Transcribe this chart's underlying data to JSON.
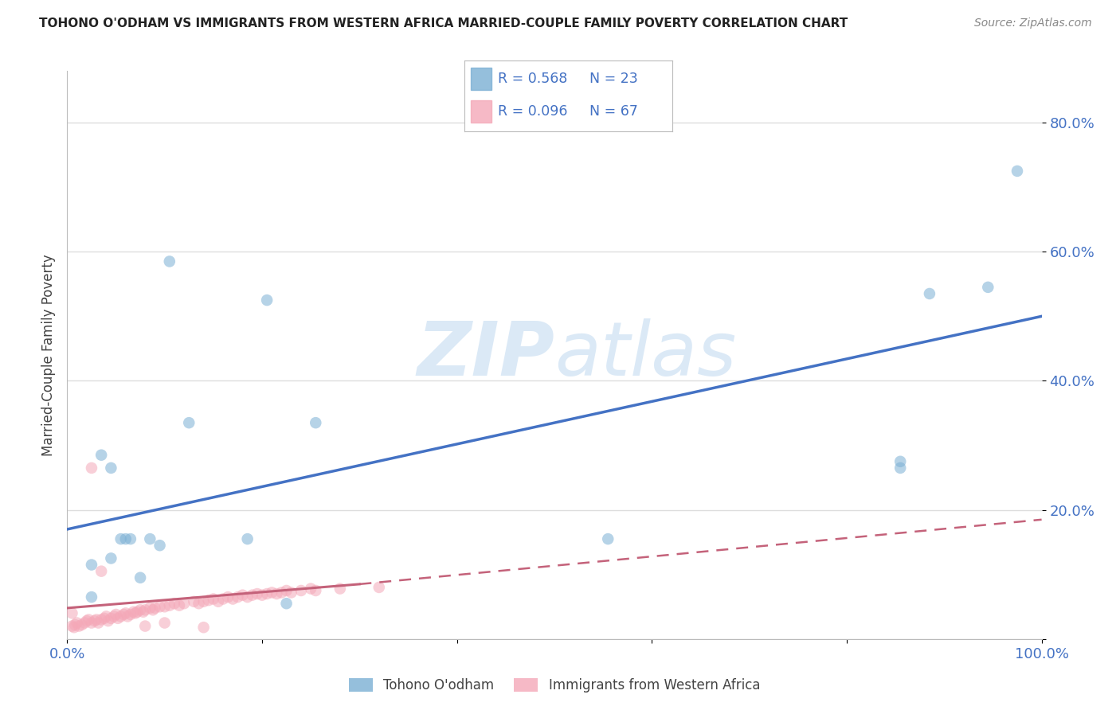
{
  "title": "TOHONO O'ODHAM VS IMMIGRANTS FROM WESTERN AFRICA MARRIED-COUPLE FAMILY POVERTY CORRELATION CHART",
  "source": "Source: ZipAtlas.com",
  "ylabel": "Married-Couple Family Poverty",
  "xlim": [
    0.0,
    1.0
  ],
  "ylim": [
    0.0,
    0.88
  ],
  "xticks": [
    0.0,
    0.2,
    0.4,
    0.6,
    0.8,
    1.0
  ],
  "xticklabels": [
    "0.0%",
    "",
    "",
    "",
    "",
    "100.0%"
  ],
  "yticks": [
    0.0,
    0.2,
    0.4,
    0.6,
    0.8
  ],
  "yticklabels": [
    "",
    "20.0%",
    "40.0%",
    "60.0%",
    "80.0%"
  ],
  "blue_color": "#7BAFD4",
  "pink_color": "#F4A8B8",
  "blue_line_color": "#4472C4",
  "pink_line_color": "#C4627A",
  "watermark_zip": "ZIP",
  "watermark_atlas": "atlas",
  "legend_R1": "0.568",
  "legend_N1": "23",
  "legend_R2": "0.096",
  "legend_N2": "67",
  "legend_label1": "Tohono O'odham",
  "legend_label2": "Immigrants from Western Africa",
  "blue_scatter_x": [
    0.025,
    0.025,
    0.035,
    0.045,
    0.045,
    0.055,
    0.06,
    0.065,
    0.075,
    0.085,
    0.095,
    0.105,
    0.125,
    0.185,
    0.205,
    0.225,
    0.255,
    0.555,
    0.855,
    0.885,
    0.855,
    0.945,
    0.975
  ],
  "blue_scatter_y": [
    0.065,
    0.115,
    0.285,
    0.265,
    0.125,
    0.155,
    0.155,
    0.155,
    0.095,
    0.155,
    0.145,
    0.585,
    0.335,
    0.155,
    0.525,
    0.055,
    0.335,
    0.155,
    0.265,
    0.535,
    0.275,
    0.545,
    0.725
  ],
  "pink_scatter_x": [
    0.005,
    0.007,
    0.008,
    0.01,
    0.012,
    0.015,
    0.018,
    0.02,
    0.022,
    0.025,
    0.028,
    0.03,
    0.032,
    0.035,
    0.038,
    0.04,
    0.042,
    0.045,
    0.048,
    0.05,
    0.052,
    0.055,
    0.058,
    0.06,
    0.062,
    0.065,
    0.068,
    0.07,
    0.072,
    0.075,
    0.078,
    0.08,
    0.085,
    0.088,
    0.09,
    0.095,
    0.1,
    0.105,
    0.11,
    0.115,
    0.12,
    0.13,
    0.135,
    0.14,
    0.145,
    0.15,
    0.155,
    0.16,
    0.165,
    0.17,
    0.175,
    0.18,
    0.185,
    0.19,
    0.195,
    0.2,
    0.205,
    0.21,
    0.215,
    0.22,
    0.225,
    0.23,
    0.24,
    0.25,
    0.255,
    0.28,
    0.32
  ],
  "pink_scatter_y": [
    0.02,
    0.018,
    0.022,
    0.025,
    0.02,
    0.022,
    0.025,
    0.028,
    0.03,
    0.025,
    0.028,
    0.03,
    0.025,
    0.03,
    0.032,
    0.035,
    0.028,
    0.032,
    0.035,
    0.038,
    0.032,
    0.035,
    0.038,
    0.04,
    0.035,
    0.038,
    0.042,
    0.04,
    0.042,
    0.045,
    0.042,
    0.045,
    0.048,
    0.045,
    0.048,
    0.05,
    0.05,
    0.052,
    0.055,
    0.052,
    0.055,
    0.058,
    0.055,
    0.058,
    0.06,
    0.062,
    0.058,
    0.062,
    0.065,
    0.062,
    0.065,
    0.068,
    0.065,
    0.068,
    0.07,
    0.068,
    0.07,
    0.072,
    0.07,
    0.072,
    0.075,
    0.072,
    0.075,
    0.078,
    0.075,
    0.078,
    0.08
  ],
  "pink_extra_x": [
    0.025,
    0.08,
    0.14,
    0.005,
    0.035,
    0.1
  ],
  "pink_extra_y": [
    0.265,
    0.02,
    0.018,
    0.04,
    0.105,
    0.025
  ],
  "blue_trend_x": [
    0.0,
    1.0
  ],
  "blue_trend_y": [
    0.17,
    0.5
  ],
  "pink_trend_x0": 0.0,
  "pink_trend_x_break": 0.3,
  "pink_trend_x1": 1.0,
  "pink_trend_y0": 0.048,
  "pink_trend_y_break": 0.085,
  "pink_trend_y1": 0.185,
  "marker_size": 110,
  "alpha": 0.55,
  "grid_color": "#DDDDDD",
  "background_color": "#FFFFFF",
  "tick_color": "#4472C4",
  "title_color": "#222222",
  "source_color": "#888888"
}
